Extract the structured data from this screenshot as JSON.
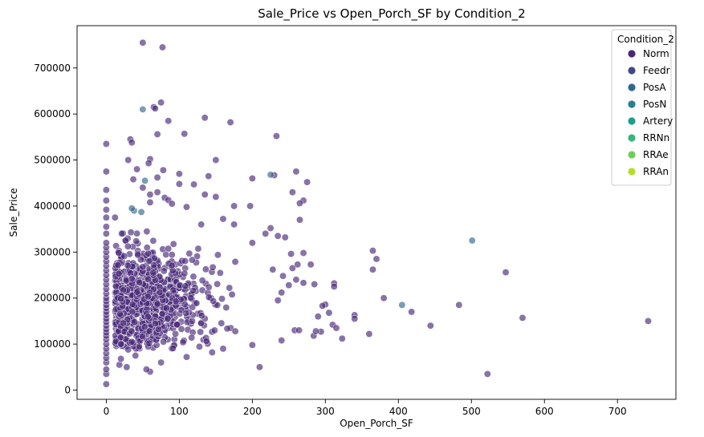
{
  "chart_data": {
    "type": "scatter",
    "title": "Sale_Price vs Open_Porch_SF by Condition_2",
    "xlabel": "Open_Porch_SF",
    "ylabel": "Sale_Price",
    "xlim": [
      -40,
      780
    ],
    "ylim": [
      -20000,
      792000
    ],
    "xticks": [
      0,
      100,
      200,
      300,
      400,
      500,
      600,
      700
    ],
    "yticks": [
      0,
      100000,
      200000,
      300000,
      400000,
      500000,
      600000,
      700000
    ],
    "grid": false,
    "legend": {
      "title": "Condition_2",
      "placement": "top-right",
      "entries": [
        {
          "name": "Norm",
          "color": "#482878"
        },
        {
          "name": "Feedr",
          "color": "#3e4989"
        },
        {
          "name": "PosA",
          "color": "#31688e"
        },
        {
          "name": "PosN",
          "color": "#26828e"
        },
        {
          "name": "Artery",
          "color": "#1f9e89"
        },
        {
          "name": "RRNn",
          "color": "#35b779"
        },
        {
          "name": "RRAe",
          "color": "#6ece58"
        },
        {
          "name": "RRAn",
          "color": "#b5de2b"
        }
      ]
    },
    "series": [
      {
        "name": "Norm",
        "color": "#482878",
        "points": [
          [
            0,
            13000
          ],
          [
            0,
            35000
          ],
          [
            0,
            45000
          ],
          [
            0,
            60000
          ],
          [
            0,
            70000
          ],
          [
            0,
            80000
          ],
          [
            0,
            90000
          ],
          [
            0,
            100000
          ],
          [
            0,
            110000
          ],
          [
            0,
            118000
          ],
          [
            0,
            125000
          ],
          [
            0,
            132000
          ],
          [
            0,
            140000
          ],
          [
            0,
            148000
          ],
          [
            0,
            155000
          ],
          [
            0,
            163000
          ],
          [
            0,
            170000
          ],
          [
            0,
            178000
          ],
          [
            0,
            185000
          ],
          [
            0,
            193000
          ],
          [
            0,
            200000
          ],
          [
            0,
            210000
          ],
          [
            0,
            220000
          ],
          [
            0,
            230000
          ],
          [
            0,
            240000
          ],
          [
            0,
            250000
          ],
          [
            0,
            260000
          ],
          [
            0,
            270000
          ],
          [
            0,
            280000
          ],
          [
            0,
            290000
          ],
          [
            0,
            300000
          ],
          [
            0,
            310000
          ],
          [
            0,
            320000
          ],
          [
            0,
            340000
          ],
          [
            0,
            355000
          ],
          [
            0,
            375000
          ],
          [
            0,
            392000
          ],
          [
            0,
            412000
          ],
          [
            0,
            435000
          ],
          [
            0,
            475000
          ],
          [
            0,
            535000
          ],
          [
            50,
            755000
          ],
          [
            77,
            745000
          ],
          [
            75,
            625000
          ],
          [
            65,
            615000
          ],
          [
            67,
            612000
          ],
          [
            85,
            585000
          ],
          [
            135,
            592000
          ],
          [
            170,
            582000
          ],
          [
            107,
            557000
          ],
          [
            70,
            556000
          ],
          [
            33,
            545000
          ],
          [
            35,
            538000
          ],
          [
            233,
            552000
          ],
          [
            30,
            500000
          ],
          [
            60,
            502000
          ],
          [
            58,
            493000
          ],
          [
            150,
            500000
          ],
          [
            260,
            475000
          ],
          [
            42,
            480000
          ],
          [
            78,
            478000
          ],
          [
            100,
            470000
          ],
          [
            200,
            460000
          ],
          [
            140,
            465000
          ],
          [
            230,
            467000
          ],
          [
            275,
            452000
          ],
          [
            70,
            462000
          ],
          [
            50,
            440000
          ],
          [
            100,
            448000
          ],
          [
            37,
            458000
          ],
          [
            120,
            447000
          ],
          [
            255,
            430000
          ],
          [
            70,
            430000
          ],
          [
            60,
            425000
          ],
          [
            80,
            418000
          ],
          [
            85,
            413000
          ],
          [
            135,
            425000
          ],
          [
            270,
            412000
          ],
          [
            265,
            406000
          ],
          [
            175,
            400000
          ],
          [
            197,
            400000
          ],
          [
            60,
            408000
          ],
          [
            90,
            405000
          ],
          [
            110,
            398000
          ],
          [
            150,
            420000
          ],
          [
            12,
            375000
          ],
          [
            265,
            370000
          ],
          [
            160,
            372000
          ],
          [
            130,
            360000
          ],
          [
            175,
            360000
          ],
          [
            225,
            352000
          ],
          [
            218,
            340000
          ],
          [
            235,
            335000
          ],
          [
            200,
            320000
          ],
          [
            245,
            332000
          ],
          [
            270,
            298000
          ],
          [
            365,
            303000
          ],
          [
            370,
            285000
          ],
          [
            253,
            296000
          ],
          [
            262,
            273000
          ],
          [
            280,
            273000
          ],
          [
            255,
            265000
          ],
          [
            365,
            262000
          ],
          [
            228,
            262000
          ],
          [
            547,
            256000
          ],
          [
            242,
            248000
          ],
          [
            260,
            240000
          ],
          [
            270,
            233000
          ],
          [
            312,
            232000
          ],
          [
            285,
            230000
          ],
          [
            312,
            225000
          ],
          [
            250,
            228000
          ],
          [
            240,
            212000
          ],
          [
            380,
            200000
          ],
          [
            235,
            195000
          ],
          [
            300,
            186000
          ],
          [
            296,
            183000
          ],
          [
            340,
            163000
          ],
          [
            483,
            185000
          ],
          [
            570,
            157000
          ],
          [
            340,
            155000
          ],
          [
            418,
            170000
          ],
          [
            742,
            150000
          ],
          [
            305,
            168000
          ],
          [
            290,
            160000
          ],
          [
            310,
            142000
          ],
          [
            315,
            135000
          ],
          [
            360,
            122000
          ],
          [
            444,
            140000
          ],
          [
            258,
            130000
          ],
          [
            264,
            130000
          ],
          [
            284,
            118000
          ],
          [
            294,
            127000
          ],
          [
            287,
            128000
          ],
          [
            323,
            112000
          ],
          [
            522,
            35000
          ],
          [
            210,
            50000
          ],
          [
            60,
            40000
          ],
          [
            75,
            60000
          ],
          [
            110,
            72000
          ],
          [
            145,
            82000
          ],
          [
            160,
            90000
          ],
          [
            200,
            98000
          ],
          [
            240,
            108000
          ],
          [
            18,
            55000
          ],
          [
            28,
            50000
          ],
          [
            40,
            75000
          ],
          [
            55,
            45000
          ],
          [
            20,
            68000
          ],
          [
            30,
            88000
          ],
          [
            45,
            95000
          ],
          [
            20,
            100000
          ],
          [
            35,
            105000
          ]
        ],
        "cluster": {
          "x_range": [
            10,
            260
          ],
          "y_range": [
            90000,
            360000
          ],
          "count": 900
        }
      },
      {
        "name": "PosA",
        "color": "#31688e",
        "points": [
          [
            50,
            610000
          ],
          [
            53,
            455000
          ],
          [
            38,
            390000
          ],
          [
            48,
            387000
          ],
          [
            225,
            468000
          ],
          [
            501,
            325000
          ],
          [
            405,
            185000
          ],
          [
            35,
            395000
          ]
        ]
      }
    ]
  }
}
